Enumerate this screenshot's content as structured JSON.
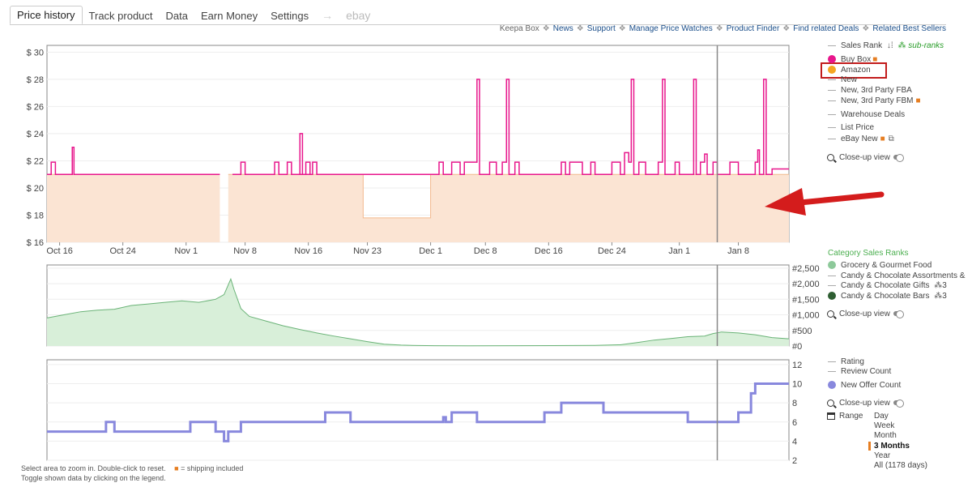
{
  "tabs": {
    "price_history": "Price history",
    "track_product": "Track product",
    "data": "Data",
    "earn_money": "Earn Money",
    "settings": "Settings",
    "arrow": "→",
    "ebay": "ebay"
  },
  "links": {
    "keepa_box": "Keepa Box",
    "separator": "❖",
    "items": [
      "News",
      "Support",
      "Manage Price Watches",
      "Product Finder",
      "Find related Deals",
      "Related Best Sellers"
    ]
  },
  "price_legend": {
    "sales_rank": "Sales Rank",
    "sub_ranks": "sub-ranks",
    "buy_box": "Buy Box",
    "amazon": "Amazon",
    "new": "New",
    "new_fba": "New, 3rd Party FBA",
    "new_fbm": "New, 3rd Party FBM",
    "warehouse": "Warehouse Deals",
    "list_price": "List Price",
    "ebay_new": "eBay New",
    "closeup": "Close-up view",
    "colors": {
      "buy_box": "#e8168c",
      "amazon": "#f5a623"
    }
  },
  "rank_legend": {
    "title": "Category Sales Ranks",
    "items": [
      {
        "label": "Grocery & Gourmet Food",
        "color": "#8dc99a",
        "type": "dot"
      },
      {
        "label": "Candy & Chocolate Assortments &",
        "color": "#aaa",
        "type": "dash"
      },
      {
        "label": "Candy & Chocolate Gifts",
        "suffix": "3",
        "color": "#aaa",
        "type": "dash"
      },
      {
        "label": "Candy & Chocolate Bars",
        "suffix": "3",
        "color": "#2e5e32",
        "type": "dot"
      }
    ],
    "closeup": "Close-up view"
  },
  "offers_legend": {
    "rating": "Rating",
    "review_count": "Review Count",
    "new_offer_count": "New Offer Count",
    "closeup": "Close-up view",
    "range_label": "Range",
    "ranges": [
      "Day",
      "Week",
      "Month",
      "3 Months",
      "Year",
      "All (1178 days)"
    ],
    "selected_range": "3 Months",
    "offer_color": "#8888dd"
  },
  "footer": {
    "line1": "Select area to zoom in. Double-click to reset.",
    "shipping_note": "= shipping included",
    "line2": "Toggle shown data by clicking on the legend."
  },
  "chart_data": [
    {
      "type": "line",
      "name": "price",
      "x_ticks": [
        "Oct 16",
        "Oct 24",
        "Nov 1",
        "Nov 8",
        "Nov 16",
        "Nov 23",
        "Dec 1",
        "Dec 8",
        "Dec 16",
        "Dec 24",
        "Jan 1",
        "Jan 8"
      ],
      "y_ticks": [
        "$ 16",
        "$ 18",
        "$ 20",
        "$ 22",
        "$ 24",
        "$ 26",
        "$ 28",
        "$ 30"
      ],
      "ylim": [
        16,
        30.5
      ],
      "xlim": [
        0,
        88
      ],
      "series": [
        {
          "name": "Amazon",
          "color": "#fbe4d3",
          "points": [
            [
              0,
              21
            ],
            [
              20.5,
              21
            ],
            [
              20.5,
              null
            ],
            [
              21.5,
              null
            ],
            [
              21.5,
              21
            ],
            [
              37.5,
              21
            ],
            [
              37.5,
              17.8
            ],
            [
              45.5,
              17.8
            ],
            [
              45.5,
              21
            ],
            [
              88,
              21
            ]
          ]
        },
        {
          "name": "Buy Box",
          "color": "#e8168c",
          "points": [
            [
              0,
              21
            ],
            [
              0.5,
              21
            ],
            [
              0.5,
              21.9
            ],
            [
              1,
              21.9
            ],
            [
              1,
              21
            ],
            [
              3,
              21
            ],
            [
              3,
              23
            ],
            [
              3.2,
              23
            ],
            [
              3.2,
              21
            ],
            [
              20.5,
              21
            ],
            [
              20.5,
              null
            ],
            [
              22,
              null
            ],
            [
              22,
              21
            ],
            [
              23,
              21
            ],
            [
              23,
              21.9
            ],
            [
              23.5,
              21.9
            ],
            [
              23.5,
              21
            ],
            [
              27,
              21
            ],
            [
              27,
              21.9
            ],
            [
              27.5,
              21.9
            ],
            [
              27.5,
              21
            ],
            [
              28.5,
              21
            ],
            [
              28.5,
              21.9
            ],
            [
              29,
              21.9
            ],
            [
              29,
              21
            ],
            [
              30.7,
              21
            ],
            [
              30.7,
              21.9
            ],
            [
              31.2,
              21.9
            ],
            [
              31.2,
              21
            ],
            [
              30,
              21
            ],
            [
              30,
              24
            ],
            [
              30.3,
              24
            ],
            [
              30.3,
              21
            ],
            [
              31.5,
              21
            ],
            [
              31.5,
              21.9
            ],
            [
              32,
              21.9
            ],
            [
              32,
              21
            ],
            [
              46.5,
              21
            ],
            [
              46.5,
              21.9
            ],
            [
              47,
              21.9
            ],
            [
              47,
              21
            ],
            [
              48,
              21
            ],
            [
              48,
              21.9
            ],
            [
              49,
              21.9
            ],
            [
              49,
              21
            ],
            [
              49.5,
              21
            ],
            [
              49.5,
              21.9
            ],
            [
              51,
              21.9
            ],
            [
              51,
              28
            ],
            [
              51.3,
              28
            ],
            [
              51.3,
              21
            ],
            [
              52.5,
              21
            ],
            [
              52.5,
              21.9
            ],
            [
              53.3,
              21.9
            ],
            [
              53.3,
              21
            ],
            [
              54,
              21
            ],
            [
              54,
              21.9
            ],
            [
              54.5,
              21.9
            ],
            [
              54.5,
              28
            ],
            [
              54.8,
              28
            ],
            [
              54.8,
              21
            ],
            [
              55.5,
              21
            ],
            [
              55.5,
              21.9
            ],
            [
              56,
              21.9
            ],
            [
              56,
              21
            ],
            [
              61,
              21
            ],
            [
              61,
              21.9
            ],
            [
              61.5,
              21.9
            ],
            [
              61.5,
              21
            ],
            [
              62,
              21
            ],
            [
              62,
              21.9
            ],
            [
              63.5,
              21.9
            ],
            [
              63.5,
              21
            ],
            [
              64.5,
              21
            ],
            [
              64.5,
              21.9
            ],
            [
              65,
              21.9
            ],
            [
              65,
              21
            ],
            [
              67,
              21
            ],
            [
              67,
              21.9
            ],
            [
              68,
              21.9
            ],
            [
              68,
              21
            ],
            [
              68.5,
              21
            ],
            [
              68.5,
              22.6
            ],
            [
              69,
              22.6
            ],
            [
              69,
              21.9
            ],
            [
              69.3,
              21.9
            ],
            [
              69.3,
              28
            ],
            [
              69.6,
              28
            ],
            [
              69.6,
              21
            ],
            [
              70.2,
              21
            ],
            [
              70.2,
              21.9
            ],
            [
              71,
              21.9
            ],
            [
              71,
              21
            ],
            [
              72.5,
              21
            ],
            [
              72.5,
              21.9
            ],
            [
              73,
              21.9
            ],
            [
              73,
              28
            ],
            [
              73.3,
              28
            ],
            [
              73.3,
              21
            ],
            [
              74.5,
              21
            ],
            [
              74.5,
              21.9
            ],
            [
              75,
              21.9
            ],
            [
              75,
              21
            ],
            [
              76.7,
              21
            ],
            [
              76.7,
              28
            ],
            [
              77,
              28
            ],
            [
              77,
              21
            ],
            [
              77.5,
              21
            ],
            [
              77.5,
              21.9
            ],
            [
              78,
              21.9
            ],
            [
              78,
              22.5
            ],
            [
              78.3,
              22.5
            ],
            [
              78.3,
              21
            ],
            [
              79,
              21
            ],
            [
              79,
              21.9
            ],
            [
              79.5,
              21.9
            ],
            [
              79.5,
              21
            ],
            [
              81,
              21
            ],
            [
              81,
              21.9
            ],
            [
              82,
              21.9
            ],
            [
              82,
              21
            ],
            [
              84,
              21
            ],
            [
              84,
              21.9
            ],
            [
              84.3,
              21.9
            ],
            [
              84.3,
              22.8
            ],
            [
              84.5,
              22.8
            ],
            [
              84.5,
              21
            ],
            [
              85,
              21
            ],
            [
              85,
              28
            ],
            [
              85.3,
              28
            ],
            [
              85.3,
              21
            ],
            [
              86,
              21
            ],
            [
              86,
              21.4
            ],
            [
              88,
              21.4
            ]
          ]
        }
      ]
    },
    {
      "type": "area",
      "name": "sales_rank",
      "y_ticks": [
        "#0",
        "#500",
        "#1,000",
        "#1,500",
        "#2,000",
        "#2,500"
      ],
      "ylim": [
        0,
        2600
      ],
      "xlim": [
        0,
        88
      ],
      "series": [
        {
          "name": "Grocery & Gourmet Food",
          "color": "#8dc99a",
          "points": [
            [
              0,
              900
            ],
            [
              2,
              1000
            ],
            [
              4,
              1100
            ],
            [
              6,
              1150
            ],
            [
              8,
              1180
            ],
            [
              10,
              1300
            ],
            [
              12,
              1350
            ],
            [
              14,
              1400
            ],
            [
              16,
              1450
            ],
            [
              18,
              1400
            ],
            [
              20,
              1500
            ],
            [
              21,
              1650
            ],
            [
              21.8,
              2150
            ],
            [
              22.2,
              1800
            ],
            [
              23,
              1200
            ],
            [
              24,
              950
            ],
            [
              26,
              800
            ],
            [
              28,
              650
            ],
            [
              30,
              530
            ],
            [
              32,
              420
            ],
            [
              34,
              320
            ],
            [
              36,
              230
            ],
            [
              38,
              140
            ],
            [
              40,
              60
            ],
            [
              42,
              30
            ],
            [
              44,
              15
            ],
            [
              46,
              10
            ],
            [
              50,
              8
            ],
            [
              55,
              10
            ],
            [
              60,
              12
            ],
            [
              65,
              20
            ],
            [
              68,
              40
            ],
            [
              70,
              110
            ],
            [
              72,
              190
            ],
            [
              74,
              240
            ],
            [
              76,
              300
            ],
            [
              78,
              320
            ],
            [
              79,
              400
            ],
            [
              80,
              450
            ],
            [
              82,
              420
            ],
            [
              84,
              360
            ],
            [
              86,
              270
            ],
            [
              88,
              230
            ]
          ]
        }
      ]
    },
    {
      "type": "line",
      "name": "offer_count",
      "y_ticks": [
        "2",
        "4",
        "6",
        "8",
        "10",
        "12"
      ],
      "ylim": [
        2,
        12.5
      ],
      "xlim": [
        0,
        88
      ],
      "series": [
        {
          "name": "New Offer Count",
          "color": "#8888dd",
          "points": [
            [
              0,
              5
            ],
            [
              7,
              5
            ],
            [
              7,
              6
            ],
            [
              8,
              6
            ],
            [
              8,
              5
            ],
            [
              17,
              5
            ],
            [
              17,
              6
            ],
            [
              20,
              6
            ],
            [
              20,
              5
            ],
            [
              21,
              5
            ],
            [
              21,
              4
            ],
            [
              21.5,
              4
            ],
            [
              21.5,
              5
            ],
            [
              23,
              5
            ],
            [
              23,
              6
            ],
            [
              33,
              6
            ],
            [
              33,
              7
            ],
            [
              36,
              7
            ],
            [
              36,
              6
            ],
            [
              47,
              6
            ],
            [
              47,
              6.5
            ],
            [
              47.3,
              6.5
            ],
            [
              47.3,
              6
            ],
            [
              48,
              6
            ],
            [
              48,
              7
            ],
            [
              51,
              7
            ],
            [
              51,
              6
            ],
            [
              59,
              6
            ],
            [
              59,
              7
            ],
            [
              61,
              7
            ],
            [
              61,
              8
            ],
            [
              66,
              8
            ],
            [
              66,
              7
            ],
            [
              76,
              7
            ],
            [
              76,
              6
            ],
            [
              82,
              6
            ],
            [
              82,
              7
            ],
            [
              83.5,
              7
            ],
            [
              83.5,
              9
            ],
            [
              84,
              9
            ],
            [
              84,
              10
            ],
            [
              88,
              10
            ]
          ]
        }
      ]
    }
  ]
}
